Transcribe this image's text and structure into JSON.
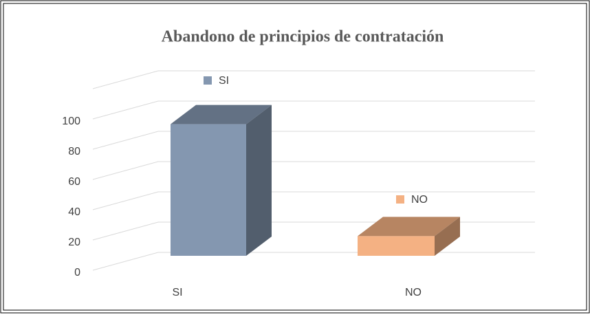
{
  "chart_data": {
    "type": "bar3d",
    "title": "Abandono de principios de contratación",
    "categories": [
      "SI",
      "NO"
    ],
    "series": [
      {
        "name": "SI",
        "color": "#8497b0",
        "values": [
          87,
          null
        ]
      },
      {
        "name": "NO",
        "color": "#f4b183",
        "values": [
          null,
          13
        ]
      }
    ],
    "ylim": [
      0,
      120
    ],
    "yticks": [
      0,
      20,
      40,
      60,
      80,
      100
    ],
    "grid": true
  }
}
